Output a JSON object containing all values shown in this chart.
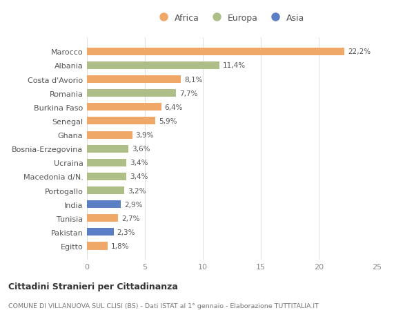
{
  "categories": [
    "Egitto",
    "Pakistan",
    "Tunisia",
    "India",
    "Portogallo",
    "Macedonia d/N.",
    "Ucraina",
    "Bosnia-Erzegovina",
    "Ghana",
    "Senegal",
    "Burkina Faso",
    "Romania",
    "Costa d'Avorio",
    "Albania",
    "Marocco"
  ],
  "values": [
    1.8,
    2.3,
    2.7,
    2.9,
    3.2,
    3.4,
    3.4,
    3.6,
    3.9,
    5.9,
    6.4,
    7.7,
    8.1,
    11.4,
    22.2
  ],
  "bar_colors": [
    "#F0A868",
    "#5B7FC4",
    "#F0A868",
    "#5B7FC4",
    "#ADBF87",
    "#ADBF87",
    "#ADBF87",
    "#ADBF87",
    "#F0A868",
    "#F0A868",
    "#F0A868",
    "#ADBF87",
    "#F0A868",
    "#ADBF87",
    "#F0A868"
  ],
  "labels": [
    "1,8%",
    "2,3%",
    "2,7%",
    "2,9%",
    "3,2%",
    "3,4%",
    "3,4%",
    "3,6%",
    "3,9%",
    "5,9%",
    "6,4%",
    "7,7%",
    "8,1%",
    "11,4%",
    "22,2%"
  ],
  "xlim": [
    0,
    25
  ],
  "xticks": [
    0,
    5,
    10,
    15,
    20,
    25
  ],
  "title": "Cittadini Stranieri per Cittadinanza",
  "subtitle": "COMUNE DI VILLANUOVA SUL CLISI (BS) - Dati ISTAT al 1° gennaio - Elaborazione TUTTITALIA.IT",
  "legend_labels": [
    "Africa",
    "Europa",
    "Asia"
  ],
  "legend_colors": [
    "#F0A868",
    "#ADBF87",
    "#5B7FC4"
  ],
  "bg_color": "#ffffff",
  "grid_color": "#e0e0e0"
}
